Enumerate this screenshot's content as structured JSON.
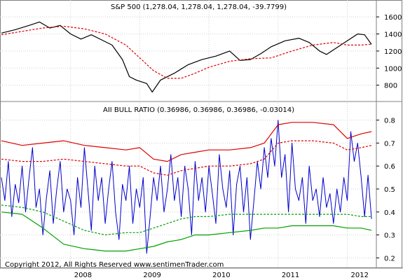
{
  "chart_data": [
    {
      "type": "line",
      "title": "S&P 500 (1,278.04, 1,278.04, 1,278.04, -39.7799)",
      "y_ticks": [
        1600,
        1400,
        1200,
        1000,
        800
      ],
      "ylim": [
        650,
        1650
      ],
      "x_ticks": [
        "2008",
        "2009",
        "2010",
        "2011",
        "2012"
      ],
      "grid": true,
      "series": [
        {
          "color": "#000000",
          "style": "solid",
          "x": [
            2007.0,
            2007.2,
            2007.4,
            2007.55,
            2007.7,
            2007.85,
            2008.0,
            2008.15,
            2008.3,
            2008.45,
            2008.6,
            2008.75,
            2008.85,
            2008.95,
            2009.1,
            2009.18,
            2009.3,
            2009.5,
            2009.7,
            2009.9,
            2010.1,
            2010.3,
            2010.45,
            2010.6,
            2010.75,
            2010.9,
            2011.1,
            2011.3,
            2011.45,
            2011.6,
            2011.7,
            2011.85,
            2012.0,
            2012.15,
            2012.25,
            2012.35
          ],
          "values": [
            1410,
            1450,
            1500,
            1540,
            1470,
            1500,
            1400,
            1340,
            1390,
            1330,
            1270,
            1100,
            900,
            860,
            820,
            720,
            860,
            940,
            1040,
            1100,
            1140,
            1200,
            1090,
            1100,
            1170,
            1250,
            1320,
            1350,
            1300,
            1200,
            1160,
            1240,
            1320,
            1400,
            1390,
            1278
          ]
        },
        {
          "color": "#e00000",
          "style": "dashed",
          "x": [
            2007.0,
            2007.3,
            2007.6,
            2007.9,
            2008.2,
            2008.5,
            2008.8,
            2009.0,
            2009.2,
            2009.4,
            2009.6,
            2009.8,
            2010.0,
            2010.3,
            2010.6,
            2010.9,
            2011.2,
            2011.5,
            2011.8,
            2012.0,
            2012.2,
            2012.35
          ],
          "values": [
            1390,
            1430,
            1470,
            1490,
            1460,
            1400,
            1270,
            1120,
            970,
            880,
            880,
            940,
            1010,
            1080,
            1110,
            1120,
            1200,
            1270,
            1300,
            1270,
            1270,
            1280
          ]
        }
      ]
    },
    {
      "type": "line",
      "title": "AII BULL RATIO (0.36986, 0.36986, 0.36986, -0.03014)",
      "y_ticks": [
        0.8,
        0.7,
        0.6,
        0.5,
        0.4,
        0.3,
        0.2
      ],
      "ylim": [
        0.18,
        0.82
      ],
      "x_ticks": [
        "2008",
        "2009",
        "2010",
        "2011",
        "2012"
      ],
      "grid": true,
      "series": [
        {
          "color": "#0000cc",
          "style": "solid",
          "x": [
            2007.0,
            2007.05,
            2007.1,
            2007.15,
            2007.2,
            2007.25,
            2007.3,
            2007.35,
            2007.4,
            2007.45,
            2007.5,
            2007.55,
            2007.6,
            2007.65,
            2007.7,
            2007.75,
            2007.8,
            2007.85,
            2007.9,
            2007.95,
            2008.0,
            2008.05,
            2008.1,
            2008.15,
            2008.2,
            2008.25,
            2008.3,
            2008.35,
            2008.4,
            2008.45,
            2008.5,
            2008.55,
            2008.6,
            2008.65,
            2008.7,
            2008.75,
            2008.8,
            2008.85,
            2008.9,
            2008.95,
            2009.0,
            2009.05,
            2009.1,
            2009.15,
            2009.2,
            2009.25,
            2009.3,
            2009.35,
            2009.4,
            2009.45,
            2009.5,
            2009.55,
            2009.6,
            2009.65,
            2009.7,
            2009.75,
            2009.8,
            2009.85,
            2009.9,
            2009.95,
            2010.0,
            2010.05,
            2010.1,
            2010.15,
            2010.2,
            2010.25,
            2010.3,
            2010.35,
            2010.4,
            2010.45,
            2010.5,
            2010.55,
            2010.6,
            2010.65,
            2010.7,
            2010.75,
            2010.8,
            2010.85,
            2010.9,
            2010.95,
            2011.0,
            2011.05,
            2011.1,
            2011.15,
            2011.2,
            2011.25,
            2011.3,
            2011.35,
            2011.4,
            2011.45,
            2011.5,
            2011.55,
            2011.6,
            2011.65,
            2011.7,
            2011.75,
            2011.8,
            2011.85,
            2011.9,
            2011.95,
            2012.0,
            2012.05,
            2012.1,
            2012.15,
            2012.2,
            2012.25,
            2012.3,
            2012.35
          ],
          "values": [
            0.55,
            0.45,
            0.62,
            0.38,
            0.52,
            0.44,
            0.6,
            0.4,
            0.55,
            0.68,
            0.42,
            0.5,
            0.3,
            0.46,
            0.58,
            0.35,
            0.5,
            0.62,
            0.4,
            0.5,
            0.45,
            0.3,
            0.55,
            0.42,
            0.68,
            0.5,
            0.32,
            0.6,
            0.45,
            0.55,
            0.35,
            0.5,
            0.62,
            0.4,
            0.28,
            0.52,
            0.45,
            0.6,
            0.35,
            0.5,
            0.42,
            0.55,
            0.22,
            0.38,
            0.55,
            0.45,
            0.6,
            0.4,
            0.5,
            0.65,
            0.45,
            0.55,
            0.38,
            0.6,
            0.5,
            0.3,
            0.62,
            0.45,
            0.55,
            0.4,
            0.6,
            0.48,
            0.35,
            0.65,
            0.5,
            0.42,
            0.58,
            0.3,
            0.52,
            0.6,
            0.4,
            0.55,
            0.28,
            0.45,
            0.62,
            0.5,
            0.68,
            0.55,
            0.72,
            0.6,
            0.8,
            0.55,
            0.65,
            0.4,
            0.7,
            0.5,
            0.45,
            0.55,
            0.35,
            0.6,
            0.45,
            0.5,
            0.38,
            0.55,
            0.42,
            0.48,
            0.35,
            0.5,
            0.4,
            0.55,
            0.45,
            0.75,
            0.62,
            0.7,
            0.55,
            0.38,
            0.56,
            0.37
          ]
        },
        {
          "color": "#e00000",
          "style": "solid",
          "x": [
            2007.0,
            2007.3,
            2007.6,
            2007.9,
            2008.2,
            2008.5,
            2008.8,
            2009.0,
            2009.2,
            2009.4,
            2009.6,
            2009.8,
            2010.0,
            2010.3,
            2010.6,
            2010.8,
            2011.0,
            2011.2,
            2011.5,
            2011.8,
            2012.0,
            2012.2,
            2012.35
          ],
          "values": [
            0.71,
            0.69,
            0.7,
            0.71,
            0.69,
            0.68,
            0.67,
            0.68,
            0.63,
            0.62,
            0.65,
            0.66,
            0.67,
            0.67,
            0.68,
            0.7,
            0.78,
            0.79,
            0.79,
            0.78,
            0.72,
            0.74,
            0.75
          ]
        },
        {
          "color": "#e00000",
          "style": "dashed",
          "x": [
            2007.0,
            2007.3,
            2007.6,
            2007.9,
            2008.2,
            2008.5,
            2008.8,
            2009.0,
            2009.2,
            2009.4,
            2009.6,
            2009.8,
            2010.0,
            2010.3,
            2010.6,
            2010.8,
            2011.0,
            2011.2,
            2011.5,
            2011.8,
            2012.0,
            2012.2,
            2012.35
          ],
          "values": [
            0.63,
            0.62,
            0.62,
            0.63,
            0.62,
            0.61,
            0.6,
            0.6,
            0.57,
            0.56,
            0.58,
            0.59,
            0.6,
            0.6,
            0.61,
            0.63,
            0.7,
            0.71,
            0.71,
            0.7,
            0.67,
            0.68,
            0.69
          ]
        },
        {
          "color": "#00a000",
          "style": "dashed",
          "x": [
            2007.0,
            2007.3,
            2007.6,
            2007.9,
            2008.2,
            2008.5,
            2008.8,
            2009.0,
            2009.2,
            2009.4,
            2009.6,
            2009.8,
            2010.0,
            2010.3,
            2010.6,
            2010.8,
            2011.0,
            2011.2,
            2011.5,
            2011.8,
            2012.0,
            2012.2,
            2012.35
          ],
          "values": [
            0.43,
            0.42,
            0.4,
            0.36,
            0.32,
            0.3,
            0.31,
            0.31,
            0.33,
            0.35,
            0.37,
            0.38,
            0.38,
            0.39,
            0.39,
            0.39,
            0.39,
            0.39,
            0.39,
            0.39,
            0.39,
            0.38,
            0.38
          ]
        },
        {
          "color": "#00a000",
          "style": "solid",
          "x": [
            2007.0,
            2007.3,
            2007.6,
            2007.9,
            2008.2,
            2008.5,
            2008.8,
            2009.0,
            2009.2,
            2009.4,
            2009.6,
            2009.8,
            2010.0,
            2010.3,
            2010.6,
            2010.8,
            2011.0,
            2011.2,
            2011.5,
            2011.8,
            2012.0,
            2012.2,
            2012.35
          ],
          "values": [
            0.4,
            0.39,
            0.33,
            0.26,
            0.24,
            0.23,
            0.23,
            0.24,
            0.25,
            0.27,
            0.28,
            0.3,
            0.3,
            0.31,
            0.32,
            0.33,
            0.33,
            0.34,
            0.34,
            0.34,
            0.33,
            0.33,
            0.32
          ]
        }
      ]
    }
  ],
  "footer": {
    "copyright": "Copyright 2012, All Rights Reserved  www.sentimenTrader.com"
  }
}
